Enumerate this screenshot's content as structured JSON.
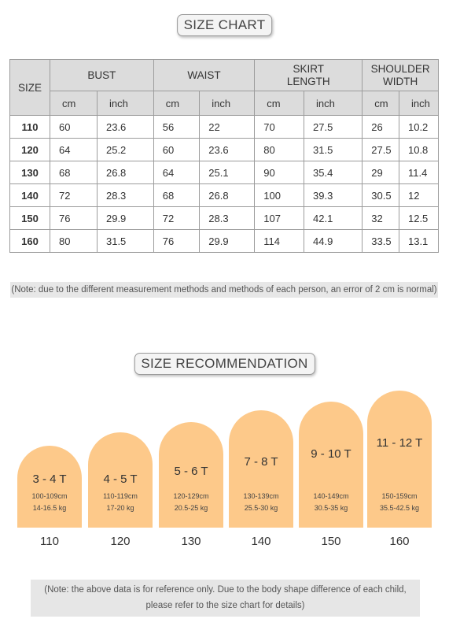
{
  "size_chart": {
    "title": "SIZE CHART",
    "corner_label": "SIZE",
    "groups": [
      "BUST",
      "WAIST",
      "SKIRT LENGTH",
      "SHOULDER WIDTH"
    ],
    "units": [
      "cm",
      "inch",
      "cm",
      "inch",
      "cm",
      "inch",
      "cm",
      "inch"
    ],
    "rows": [
      {
        "size": "110",
        "cells": [
          "60",
          "23.6",
          "56",
          "22",
          "70",
          "27.5",
          "26",
          "10.2"
        ]
      },
      {
        "size": "120",
        "cells": [
          "64",
          "25.2",
          "60",
          "23.6",
          "80",
          "31.5",
          "27.5",
          "10.8"
        ]
      },
      {
        "size": "130",
        "cells": [
          "68",
          "26.8",
          "64",
          "25.1",
          "90",
          "35.4",
          "29",
          "11.4"
        ]
      },
      {
        "size": "140",
        "cells": [
          "72",
          "28.3",
          "68",
          "26.8",
          "100",
          "39.3",
          "30.5",
          "12"
        ]
      },
      {
        "size": "150",
        "cells": [
          "76",
          "29.9",
          "72",
          "28.3",
          "107",
          "42.1",
          "32",
          "12.5"
        ]
      },
      {
        "size": "160",
        "cells": [
          "80",
          "31.5",
          "76",
          "29.9",
          "114",
          "44.9",
          "33.5",
          "13.1"
        ]
      }
    ],
    "note": "(Note: due to the different measurement methods and methods of each person, an error of 2 cm is normal)"
  },
  "recommendation": {
    "title": "SIZE RECOMMENDATION",
    "card_color": "#fdc98a",
    "cards": [
      {
        "age": "3 - 4 T",
        "height": "100-109cm",
        "weight": "14-16.5 kg",
        "size": "110"
      },
      {
        "age": "4 - 5 T",
        "height": "110-119cm",
        "weight": "17-20 kg",
        "size": "120"
      },
      {
        "age": "5 - 6 T",
        "height": "120-129cm",
        "weight": "20.5-25 kg",
        "size": "130"
      },
      {
        "age": "7 - 8 T",
        "height": "130-139cm",
        "weight": "25.5-30 kg",
        "size": "140"
      },
      {
        "age": "9 - 10 T",
        "height": "140-149cm",
        "weight": "30.5-35 kg",
        "size": "150"
      },
      {
        "age": "11 - 12 T",
        "height": "150-159cm",
        "weight": "35.5-42.5 kg",
        "size": "160"
      }
    ],
    "note_line1": "(Note: the above data is for reference only. Due to the body shape difference of each child,",
    "note_line2": "please refer to the size chart for details)"
  }
}
